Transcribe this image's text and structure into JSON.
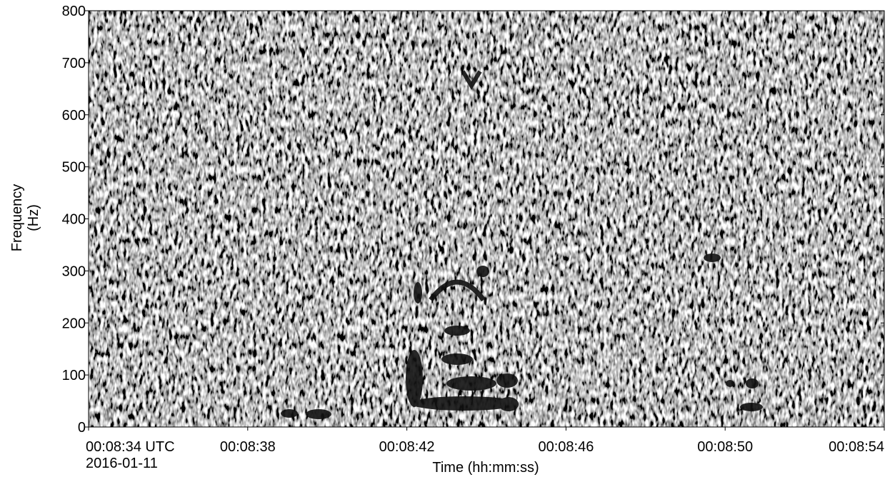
{
  "chart_data": {
    "type": "spectrogram",
    "x_label": "Time (hh:mm:ss)",
    "x_date_label": "2016-01-11",
    "y_label": [
      "Frequency",
      "(Hz)"
    ],
    "xlim": [
      514,
      534
    ],
    "xticks": [
      {
        "value": 514,
        "label": "00:08:34 UTC"
      },
      {
        "value": 518,
        "label": "00:08:38"
      },
      {
        "value": 522,
        "label": "00:08:42"
      },
      {
        "value": 526,
        "label": "00:08:46"
      },
      {
        "value": 530,
        "label": "00:08:50"
      },
      {
        "value": 534,
        "label": "00:08:54"
      }
    ],
    "ylim": [
      0,
      800
    ],
    "yticks": [
      0,
      100,
      200,
      300,
      400,
      500,
      600,
      700,
      800
    ],
    "colormap": "gray"
  }
}
